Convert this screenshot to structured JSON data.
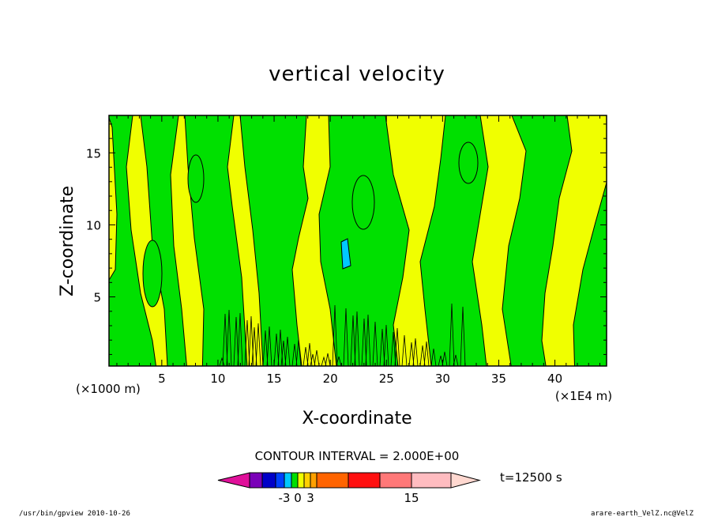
{
  "chart_data": {
    "type": "heatmap",
    "title": "vertical velocity",
    "xlabel": "X-coordinate",
    "ylabel": "Z-coordinate",
    "x_unit": "(×1E4 m)",
    "y_unit": "(×1000 m)",
    "xlim": [
      0.3,
      44.6
    ],
    "ylim": [
      0.2,
      17.6
    ],
    "x_ticks": [
      5,
      10,
      15,
      20,
      25,
      30,
      35,
      40
    ],
    "y_ticks": [
      5,
      10,
      15
    ],
    "contour_interval": "CONTOUR INTERVAL = 2.000E+00",
    "time_label": "t=12500 s",
    "colorbar": {
      "colors": [
        "#e0109a",
        "#7a00b8",
        "#0000c8",
        "#0040ff",
        "#00c8ff",
        "#00e000",
        "#f0ff00",
        "#ffd000",
        "#ffa000",
        "#ff6400",
        "#ff1010",
        "#ff7878",
        "#ffbcc0",
        "#ffd8d0"
      ],
      "tick_labels": [
        "-3",
        "0",
        "3",
        "15"
      ],
      "tick_values": [
        -3,
        0,
        3,
        15
      ]
    },
    "fill_colors": {
      "negative": "#00e000",
      "positive": "#f0ff00",
      "strong_negative": "#00c8ff"
    }
  },
  "footer": {
    "left": "/usr/bin/gpview   2010-10-26",
    "right": "arare-earth_VelZ.nc@VelZ"
  }
}
